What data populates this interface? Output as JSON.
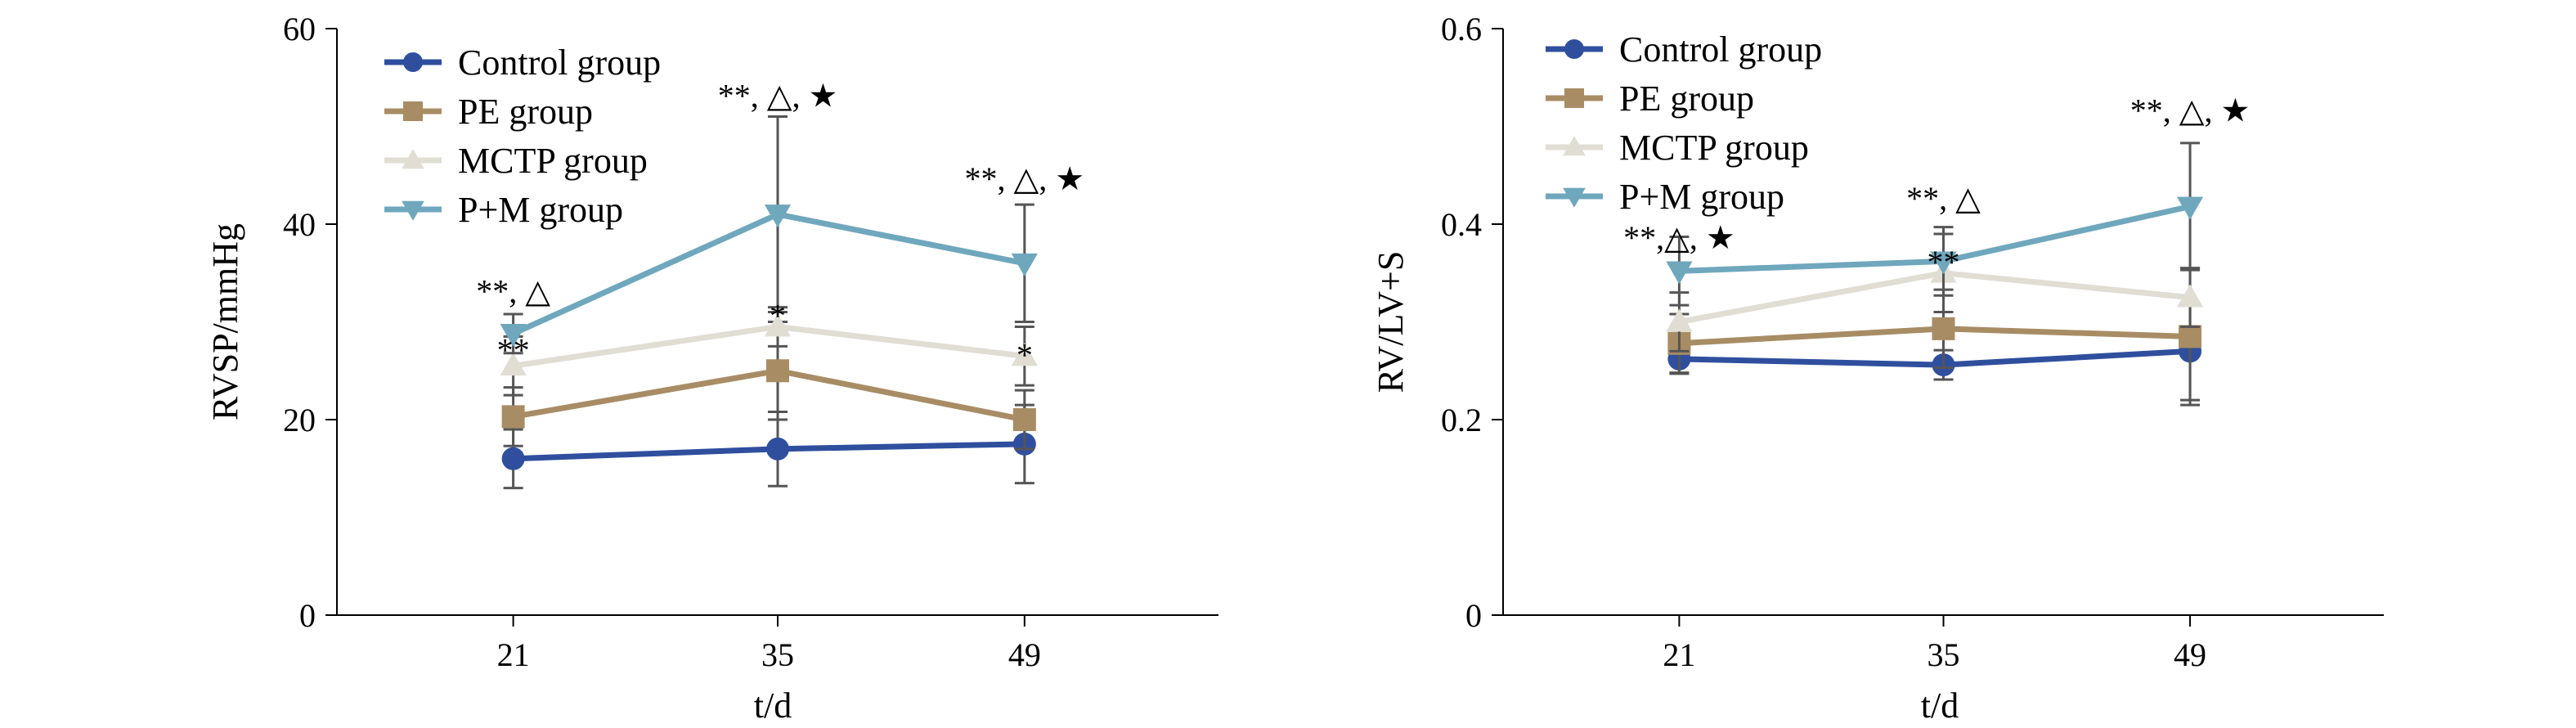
{
  "chart_data": [
    {
      "type": "line",
      "title": "",
      "xlabel": "t/d",
      "ylabel": "RVSP/mmHg",
      "categories": [
        "21",
        "35",
        "49"
      ],
      "xlim": [
        10,
        60
      ],
      "ylim": [
        0,
        60
      ],
      "yticks": [
        "0",
        "20",
        "40",
        "60"
      ],
      "legend": "top-left",
      "grid": false,
      "series": [
        {
          "name": "Control group",
          "marker": "circle",
          "color": "#2f4f9e",
          "values": [
            16,
            17,
            17.5
          ],
          "errors": [
            3,
            3.8,
            4
          ]
        },
        {
          "name": "PE group",
          "marker": "square",
          "color": "#a88c64",
          "values": [
            20.3,
            25,
            20
          ],
          "errors": [
            3,
            5,
            3
          ]
        },
        {
          "name": "MCTP group",
          "marker": "triangle-up",
          "color": "#e0ddd3",
          "values": [
            25.5,
            29.5,
            26.5
          ],
          "errors": [
            3,
            2,
            3
          ]
        },
        {
          "name": "P+M group",
          "marker": "triangle-down",
          "color": "#6fa7bd",
          "values": [
            28.8,
            41,
            36
          ],
          "errors": [
            2,
            10,
            6
          ]
        }
      ],
      "annotations": [
        {
          "text": "**, △",
          "x": "21",
          "y": 32
        },
        {
          "text": "**",
          "x": "21",
          "y": 26
        },
        {
          "text": "**, △, ★",
          "x": "35",
          "y": 52
        },
        {
          "text": "*",
          "x": "35",
          "y": 29.5
        },
        {
          "text": "**, △, ★",
          "x": "49",
          "y": 43.5
        },
        {
          "text": "*",
          "x": "49",
          "y": 25.5
        }
      ]
    },
    {
      "type": "line",
      "title": "",
      "xlabel": "t/d",
      "ylabel": "RV/LV+S",
      "categories": [
        "21",
        "35",
        "49"
      ],
      "xlim": [
        10,
        60
      ],
      "ylim": [
        0,
        0.6
      ],
      "yticks": [
        "0",
        "0.2",
        "0.4",
        "0.6"
      ],
      "legend": "top-left",
      "grid": false,
      "series": [
        {
          "name": "Control group",
          "marker": "circle",
          "color": "#2f4f9e",
          "values": [
            0.262,
            0.256,
            0.27
          ],
          "errors": [
            0.015,
            0.015,
            0.05
          ]
        },
        {
          "name": "PE group",
          "marker": "square",
          "color": "#a88c64",
          "values": [
            0.278,
            0.293,
            0.285
          ],
          "errors": [
            0.03,
            0.04,
            0.07
          ]
        },
        {
          "name": "MCTP group",
          "marker": "triangle-up",
          "color": "#e0ddd3",
          "values": [
            0.3,
            0.35,
            0.325
          ],
          "errors": [
            0.03,
            0.04,
            0.03
          ]
        },
        {
          "name": "P+M group",
          "marker": "triangle-down",
          "color": "#6fa7bd",
          "values": [
            0.352,
            0.362,
            0.418
          ],
          "errors": [
            0.035,
            0.035,
            0.065
          ]
        }
      ],
      "annotations": [
        {
          "text": "**,△, ★",
          "x": "21",
          "y": 0.375
        },
        {
          "text": "**, △",
          "x": "35",
          "y": 0.415
        },
        {
          "text": "**",
          "x": "35",
          "y": 0.35
        },
        {
          "text": "**, △, ★",
          "x": "49",
          "y": 0.505
        }
      ]
    }
  ]
}
